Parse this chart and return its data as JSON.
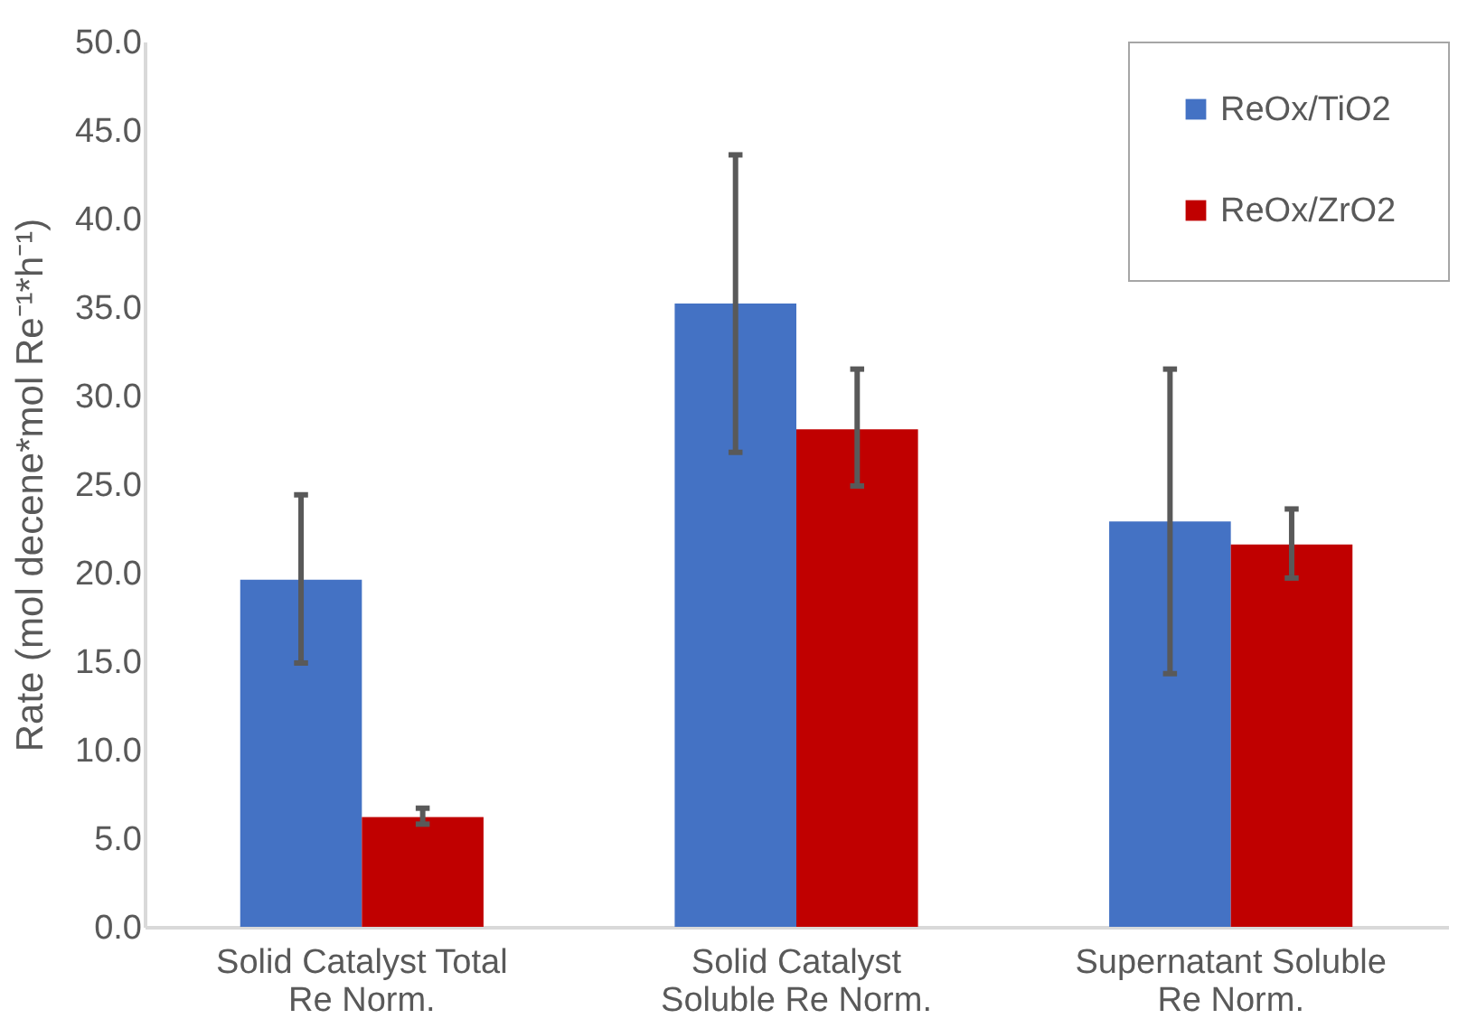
{
  "chart_data": {
    "type": "bar",
    "ylabel": "Rate (mol decene*mol Re⁻¹*h⁻¹)",
    "categories": [
      "Solid Catalyst Total Re Norm.",
      "Solid Catalyst Soluble Re Norm.",
      "Supernatant Soluble Re Norm."
    ],
    "series": [
      {
        "name": "ReOx/TiO2",
        "color": "#4472c4",
        "values": [
          19.6,
          35.2,
          22.9
        ],
        "errors": [
          [
            14.9,
            24.4
          ],
          [
            26.8,
            43.6
          ],
          [
            14.3,
            31.5
          ]
        ]
      },
      {
        "name": "ReOx/ZrO2",
        "color": "#c00000",
        "values": [
          6.2,
          28.1,
          21.6
        ],
        "errors": [
          [
            5.8,
            6.7
          ],
          [
            24.9,
            31.5
          ],
          [
            19.7,
            23.6
          ]
        ]
      }
    ],
    "ylim": [
      0,
      50
    ],
    "yticks": [
      {
        "value": 0,
        "label": "0.0"
      },
      {
        "value": 5,
        "label": "5.0"
      },
      {
        "value": 10,
        "label": "10.0"
      },
      {
        "value": 15,
        "label": "15.0"
      },
      {
        "value": 20,
        "label": "20.0"
      },
      {
        "value": 25,
        "label": "25.0"
      },
      {
        "value": 30,
        "label": "30.0"
      },
      {
        "value": 35,
        "label": "35.0"
      },
      {
        "value": 40,
        "label": "40.0"
      },
      {
        "value": 45,
        "label": "45.0"
      },
      {
        "value": 50,
        "label": "50.0"
      }
    ],
    "grid": false,
    "legend": "top right"
  }
}
